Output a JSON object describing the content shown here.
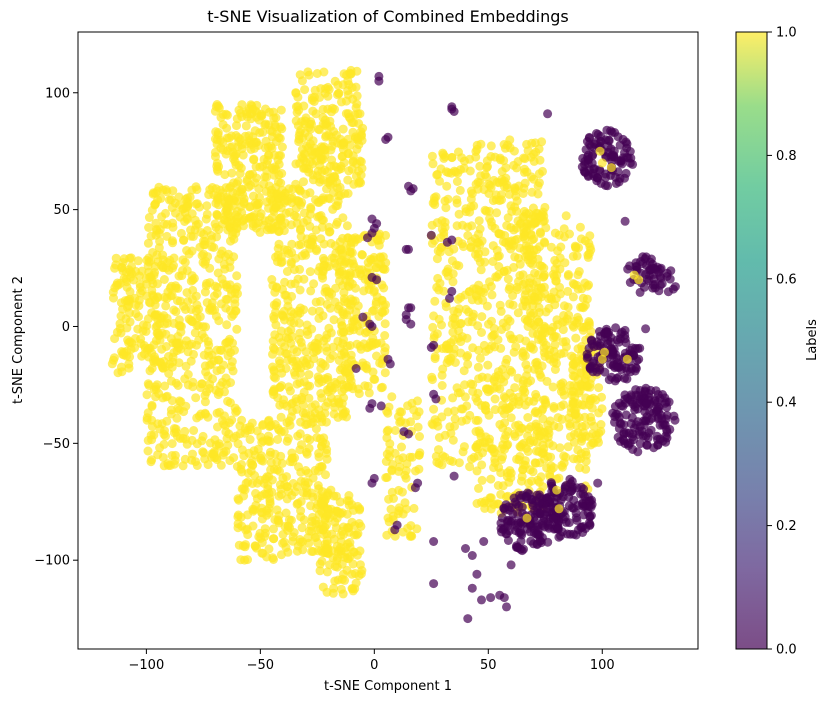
{
  "chart_data": {
    "type": "scatter",
    "title": "t-SNE Visualization of Combined Embeddings",
    "xlabel": "t-SNE Component 1",
    "ylabel": "t-SNE Component 2",
    "xlim": [
      -130,
      142
    ],
    "ylim": [
      -138,
      126
    ],
    "xticks": [
      -100,
      -50,
      0,
      50,
      100
    ],
    "yticks": [
      -100,
      -50,
      0,
      50,
      100
    ],
    "grid": false,
    "colors": {
      "label_0": "#440154",
      "label_1": "#fde725"
    },
    "marker_alpha": 0.7,
    "colorbar": {
      "label": "Labels",
      "range": [
        0.0,
        1.0
      ],
      "ticks": [
        "0.0",
        "0.2",
        "0.4",
        "0.6",
        "0.8",
        "1.0"
      ],
      "colormap": "viridis"
    },
    "series": [
      {
        "label_value": 1,
        "regions": [
          {
            "x": [
              -115,
              -95
            ],
            "y": [
              -20,
              30
            ],
            "n": 120
          },
          {
            "x": [
              -100,
              -60
            ],
            "y": [
              -60,
              60
            ],
            "n": 520
          },
          {
            "x": [
              -70,
              -40
            ],
            "y": [
              40,
              95
            ],
            "n": 260
          },
          {
            "x": [
              -60,
              -20
            ],
            "y": [
              -100,
              -40
            ],
            "n": 300
          },
          {
            "x": [
              -45,
              -10
            ],
            "y": [
              -40,
              60
            ],
            "n": 420
          },
          {
            "x": [
              -35,
              -5
            ],
            "y": [
              60,
              110
            ],
            "n": 220
          },
          {
            "x": [
              -25,
              -5
            ],
            "y": [
              -115,
              -70
            ],
            "n": 120
          },
          {
            "x": [
              -15,
              5
            ],
            "y": [
              -30,
              40
            ],
            "n": 180
          },
          {
            "x": [
              5,
              20
            ],
            "y": [
              -90,
              -30
            ],
            "n": 80
          },
          {
            "x": [
              25,
              45
            ],
            "y": [
              -60,
              75
            ],
            "n": 220
          },
          {
            "x": [
              45,
              75
            ],
            "y": [
              -80,
              80
            ],
            "n": 460
          },
          {
            "x": [
              65,
              95
            ],
            "y": [
              -70,
              50
            ],
            "n": 320
          },
          {
            "x": [
              85,
              100
            ],
            "y": [
              -50,
              0
            ],
            "n": 80
          }
        ]
      },
      {
        "label_value": 0,
        "clusters": [
          {
            "cx": 102,
            "cy": 72,
            "r": 12,
            "n": 100
          },
          {
            "cx": 105,
            "cy": -12,
            "r": 12,
            "n": 110
          },
          {
            "cx": 118,
            "cy": -40,
            "r": 14,
            "n": 140
          },
          {
            "cx": 68,
            "cy": -84,
            "r": 13,
            "n": 120
          },
          {
            "cx": 84,
            "cy": -78,
            "r": 13,
            "n": 120
          },
          {
            "cx": 118,
            "cy": 22,
            "r": 8,
            "n": 35
          },
          {
            "cx": 126,
            "cy": 20,
            "r": 7,
            "n": 20
          }
        ],
        "points": [
          [
            2,
            107
          ],
          [
            2,
            105
          ],
          [
            6,
            81
          ],
          [
            5,
            80
          ],
          [
            34,
            94
          ],
          [
            34,
            93
          ],
          [
            35,
            92
          ],
          [
            76,
            91
          ],
          [
            17,
            59
          ],
          [
            15,
            60
          ],
          [
            16,
            58
          ],
          [
            -1,
            46
          ],
          [
            1,
            44
          ],
          [
            0,
            42
          ],
          [
            14,
            33
          ],
          [
            15,
            33
          ],
          [
            -1,
            40
          ],
          [
            -3,
            38
          ],
          [
            25,
            39
          ],
          [
            34,
            37
          ],
          [
            32,
            36
          ],
          [
            -1,
            21
          ],
          [
            1,
            20
          ],
          [
            15,
            8
          ],
          [
            16,
            8
          ],
          [
            14,
            5
          ],
          [
            34,
            15
          ],
          [
            33,
            12
          ],
          [
            -5,
            4
          ],
          [
            -2,
            1
          ],
          [
            -1,
            0
          ],
          [
            14,
            3
          ],
          [
            16,
            1
          ],
          [
            25,
            -9
          ],
          [
            26,
            -8
          ],
          [
            6,
            -14
          ],
          [
            7,
            -16
          ],
          [
            -8,
            -18
          ],
          [
            -1,
            -33
          ],
          [
            -2,
            -35
          ],
          [
            3,
            -34
          ],
          [
            13,
            -45
          ],
          [
            15,
            -46
          ],
          [
            26,
            -29
          ],
          [
            27,
            -31
          ],
          [
            0,
            -65
          ],
          [
            -1,
            -67
          ],
          [
            35,
            -64
          ],
          [
            19,
            -67
          ],
          [
            18,
            -69
          ],
          [
            10,
            -85
          ],
          [
            9,
            -87
          ],
          [
            26,
            -92
          ],
          [
            40,
            -95
          ],
          [
            43,
            -98
          ],
          [
            48,
            -92
          ],
          [
            45,
            -106
          ],
          [
            43,
            -112
          ],
          [
            47,
            -117
          ],
          [
            51,
            -116
          ],
          [
            55,
            -115
          ],
          [
            41,
            -125
          ],
          [
            57,
            -116
          ],
          [
            58,
            -120
          ],
          [
            60,
            -102
          ],
          [
            26,
            -110
          ],
          [
            98,
            -67
          ],
          [
            110,
            45
          ],
          [
            119,
            -1
          ]
        ]
      }
    ]
  }
}
